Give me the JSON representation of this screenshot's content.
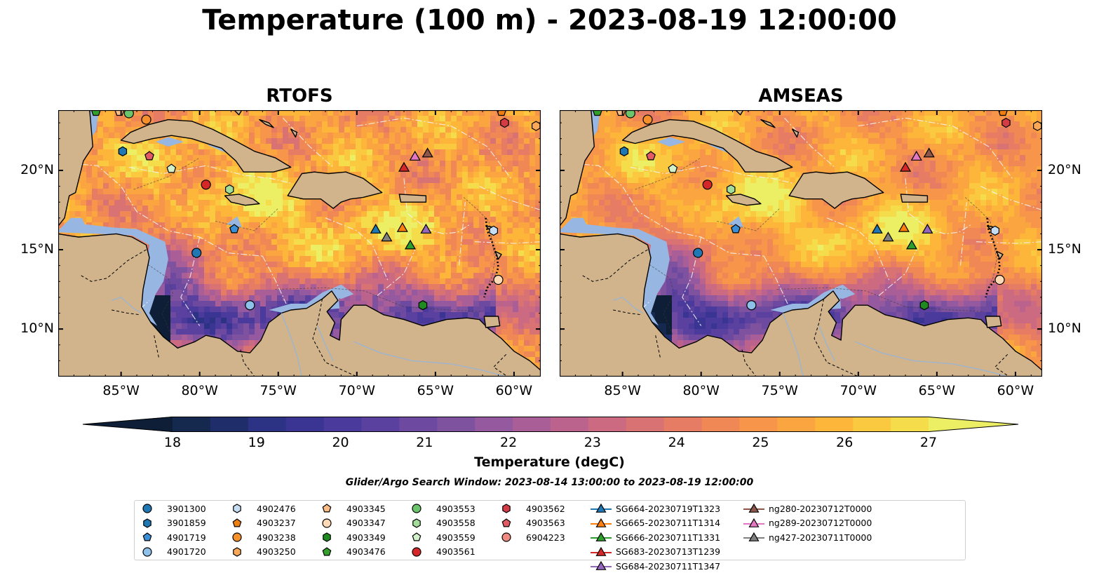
{
  "title": "Temperature (100 m) - 2023-08-19 12:00:00",
  "panels": [
    {
      "title": "RTOFS"
    },
    {
      "title": "AMSEAS"
    }
  ],
  "axes": {
    "lon_labels": [
      "85°W",
      "80°W",
      "75°W",
      "70°W",
      "65°W",
      "60°W"
    ],
    "lon_values": [
      -85,
      -80,
      -75,
      -70,
      -65,
      -60
    ],
    "lat_labels": [
      "20°N",
      "15°N",
      "10°N"
    ],
    "lat_values": [
      20,
      15,
      10
    ],
    "lon_range": [
      -89,
      -58.3
    ],
    "lat_range": [
      7,
      23.8
    ]
  },
  "colorbar": {
    "label": "Temperature (degC)",
    "ticks": [
      "18",
      "19",
      "20",
      "21",
      "22",
      "23",
      "24",
      "25",
      "26",
      "27"
    ],
    "range": [
      18,
      27
    ],
    "extend": "both",
    "colors": [
      "#0d1e36",
      "#15284e",
      "#1f2e6a",
      "#2c3385",
      "#3a3593",
      "#4a3a9c",
      "#5b419f",
      "#6d4a9f",
      "#7f52a0",
      "#94599e",
      "#a95e97",
      "#bb638d",
      "#cb6a80",
      "#d97272",
      "#e67c63",
      "#f08855",
      "#f7964a",
      "#fba541",
      "#fdb63a",
      "#fac93f",
      "#f5dc4a",
      "#ecee64"
    ]
  },
  "search_window": "Glider/Argo Search Window: 2023-08-14 13:00:00 to 2023-08-19 12:00:00",
  "legend": [
    {
      "label": "3901300",
      "marker": "circle",
      "color": "#1f77b4"
    },
    {
      "label": "3901859",
      "marker": "hexagon",
      "color": "#1f77b4"
    },
    {
      "label": "4901719",
      "marker": "pentagon",
      "color": "#3a8fd6"
    },
    {
      "label": "4901720",
      "marker": "circle",
      "color": "#8ec1ea"
    },
    {
      "label": "4902476",
      "marker": "hexagon",
      "color": "#c6ddf4"
    },
    {
      "label": "4903237",
      "marker": "pentagon",
      "color": "#f07f12"
    },
    {
      "label": "4903238",
      "marker": "circle",
      "color": "#f5902a"
    },
    {
      "label": "4903250",
      "marker": "hexagon",
      "color": "#f9a857"
    },
    {
      "label": "4903345",
      "marker": "pentagon",
      "color": "#fbbd85"
    },
    {
      "label": "4903347",
      "marker": "circle",
      "color": "#fdd9b5"
    },
    {
      "label": "4903349",
      "marker": "hexagon",
      "color": "#1f8a1f"
    },
    {
      "label": "4903476",
      "marker": "pentagon",
      "color": "#33a02c"
    },
    {
      "label": "4903553",
      "marker": "circle",
      "color": "#6cc46b"
    },
    {
      "label": "4903558",
      "marker": "hexagon",
      "color": "#a3dd9a"
    },
    {
      "label": "4903559",
      "marker": "pentagon",
      "color": "#d3f2cb"
    },
    {
      "label": "4903561",
      "marker": "circle",
      "color": "#d62728"
    },
    {
      "label": "4903562",
      "marker": "hexagon",
      "color": "#d33c44"
    },
    {
      "label": "4903563",
      "marker": "pentagon",
      "color": "#e15a64"
    },
    {
      "label": "6904223",
      "marker": "circle",
      "color": "#ef8a82"
    },
    {
      "label": "SG664-20230719T1323",
      "marker": "triangle",
      "color": "#1f77b4"
    },
    {
      "label": "SG665-20230711T1314",
      "marker": "triangle",
      "color": "#ff7f0e"
    },
    {
      "label": "SG666-20230711T1331",
      "marker": "triangle",
      "color": "#2ca02c"
    },
    {
      "label": "SG683-20230713T1239",
      "marker": "triangle",
      "color": "#d62728"
    },
    {
      "label": "SG684-20230711T1347",
      "marker": "triangle",
      "color": "#9467bd"
    },
    {
      "label": "ng280-20230712T0000",
      "marker": "triangle",
      "color": "#8c564b"
    },
    {
      "label": "ng289-20230712T0000",
      "marker": "triangle",
      "color": "#e377c2"
    },
    {
      "label": "ng427-20230711T0000",
      "marker": "triangle",
      "color": "#7f7f7f"
    }
  ],
  "observations": [
    {
      "label": "3901300",
      "lon": -80.2,
      "lat": 14.8
    },
    {
      "label": "3901859",
      "lon": -84.9,
      "lat": 21.2
    },
    {
      "label": "4901719",
      "lon": -77.8,
      "lat": 16.3
    },
    {
      "label": "4901720",
      "lon": -76.8,
      "lat": 11.5
    },
    {
      "label": "4902476",
      "lon": -61.3,
      "lat": 16.2
    },
    {
      "label": "4903237",
      "lon": -60.8,
      "lat": 23.7
    },
    {
      "label": "4903238",
      "lon": -83.4,
      "lat": 23.2
    },
    {
      "label": "4903250",
      "lon": -58.6,
      "lat": 22.8
    },
    {
      "label": "4903345",
      "lon": -85.1,
      "lat": 23.7
    },
    {
      "label": "4903347",
      "lon": -61.0,
      "lat": 13.1
    },
    {
      "label": "4903349",
      "lon": -65.8,
      "lat": 11.5
    },
    {
      "label": "4903476",
      "lon": -86.6,
      "lat": 23.7
    },
    {
      "label": "4903553",
      "lon": -84.5,
      "lat": 23.6
    },
    {
      "label": "4903558",
      "lon": -78.1,
      "lat": 18.8
    },
    {
      "label": "4903559",
      "lon": -81.8,
      "lat": 20.1
    },
    {
      "label": "4903561",
      "lon": -79.6,
      "lat": 19.1
    },
    {
      "label": "4903562",
      "lon": -60.6,
      "lat": 23.0
    },
    {
      "label": "4903563",
      "lon": -83.2,
      "lat": 20.9
    },
    {
      "label": "SG664-20230719T1323",
      "lon": -68.8,
      "lat": 16.3
    },
    {
      "label": "SG665-20230711T1314",
      "lon": -67.1,
      "lat": 16.4
    },
    {
      "label": "SG666-20230711T1331",
      "lon": -66.6,
      "lat": 15.3
    },
    {
      "label": "SG683-20230713T1239",
      "lon": -67.0,
      "lat": 20.2
    },
    {
      "label": "SG684-20230711T1347",
      "lon": -65.6,
      "lat": 16.3
    },
    {
      "label": "ng280-20230712T0000",
      "lon": -65.5,
      "lat": 21.1
    },
    {
      "label": "ng289-20230712T0000",
      "lon": -66.3,
      "lat": 20.9
    },
    {
      "label": "ng427-20230711T0000",
      "lon": -68.1,
      "lat": 15.8
    }
  ]
}
